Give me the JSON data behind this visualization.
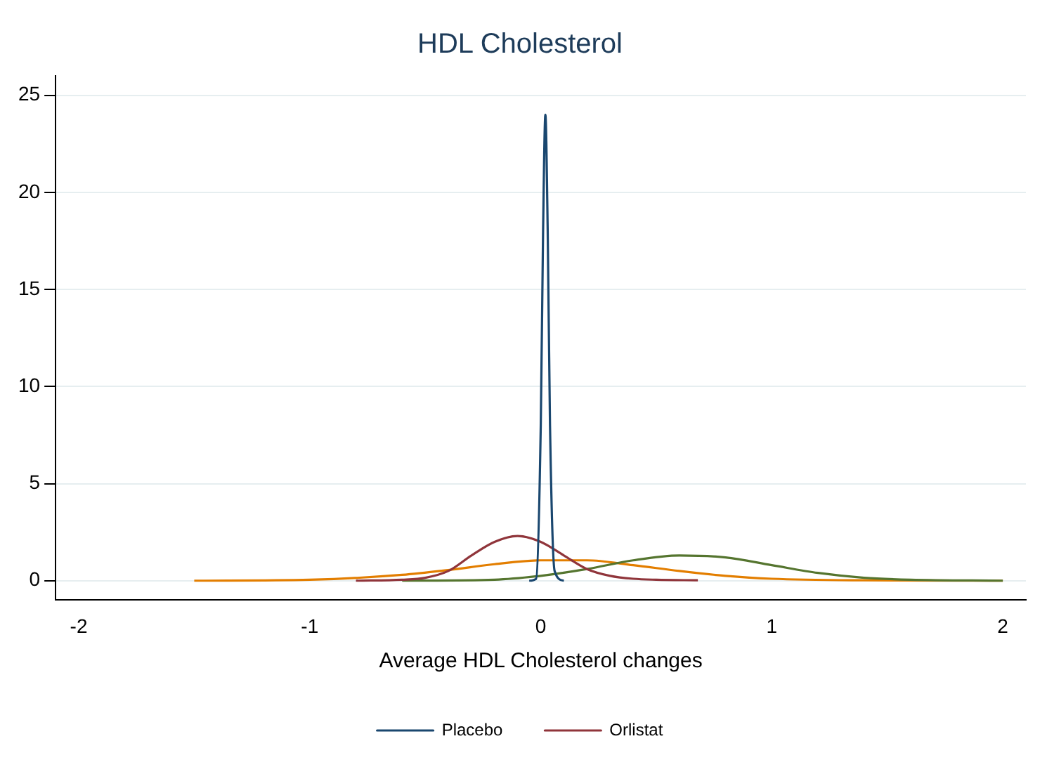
{
  "chart_data": {
    "type": "line",
    "title": "HDL Cholesterol",
    "xlabel": "Average HDL Cholesterol changes",
    "xlim": [
      -2.1,
      2.1
    ],
    "xticks": [
      -2,
      -1,
      0,
      1,
      2
    ],
    "ylim": [
      -1,
      26
    ],
    "yticks": [
      0,
      5,
      10,
      15,
      20,
      25
    ],
    "grid": "y",
    "legend": "bottom",
    "marker": "none",
    "line_style": "solid",
    "series": [
      {
        "name": "Placebo",
        "color": "#1a476f",
        "x": [
          -0.05,
          -0.02,
          0,
          0.01,
          0.02,
          0.03,
          0.04,
          0.06,
          0.1
        ],
        "values": [
          0,
          0.1,
          8,
          18,
          24,
          18,
          8,
          0.5,
          0
        ]
      },
      {
        "name": "Orlistat",
        "color": "#90353b",
        "x": [
          -0.8,
          -0.6,
          -0.5,
          -0.4,
          -0.3,
          -0.2,
          -0.1,
          0,
          0.1,
          0.2,
          0.3,
          0.4,
          0.5,
          0.68
        ],
        "values": [
          0,
          0.05,
          0.15,
          0.5,
          1.3,
          2,
          2.3,
          2,
          1.3,
          0.6,
          0.25,
          0.1,
          0.05,
          0.02
        ]
      },
      {
        "color": "#55752f",
        "x": [
          -0.6,
          -0.2,
          0,
          0.2,
          0.4,
          0.6,
          0.8,
          1,
          1.2,
          1.4,
          1.6,
          2
        ],
        "values": [
          0,
          0.05,
          0.25,
          0.6,
          1.05,
          1.3,
          1.2,
          0.8,
          0.4,
          0.15,
          0.05,
          0
        ]
      },
      {
        "color": "#e37e00",
        "x": [
          -1.5,
          -1,
          -0.6,
          -0.4,
          -0.2,
          0,
          0.2,
          0.4,
          0.6,
          0.8,
          1,
          1.4,
          2
        ],
        "values": [
          0,
          0.05,
          0.3,
          0.55,
          0.85,
          1.05,
          1.05,
          0.8,
          0.5,
          0.25,
          0.1,
          0.02,
          0
        ]
      }
    ]
  }
}
